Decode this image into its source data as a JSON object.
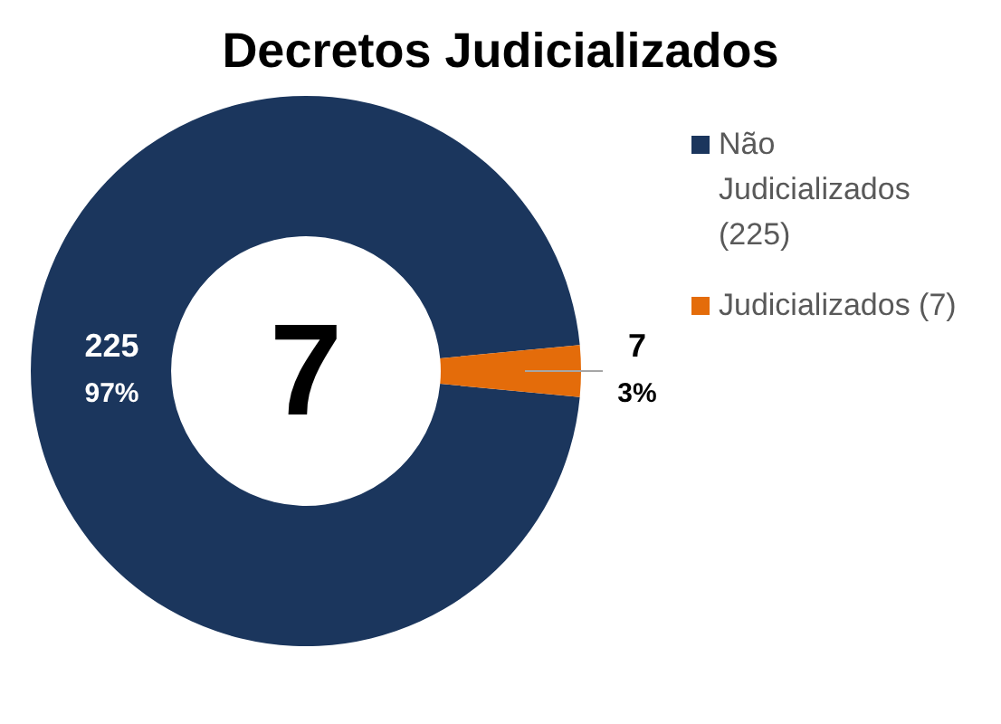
{
  "chart_data": {
    "type": "donut",
    "title": "Decretos Judicializados",
    "categories": [
      "Não Judicializados (225)",
      "Judicializados (7)"
    ],
    "values": [
      225,
      7
    ],
    "colors": [
      "#1b365d",
      "#e46c0a"
    ],
    "value_labels": [
      "225\n97%",
      "7\n3%"
    ],
    "annotations": [
      "7"
    ],
    "legend": "top right"
  }
}
